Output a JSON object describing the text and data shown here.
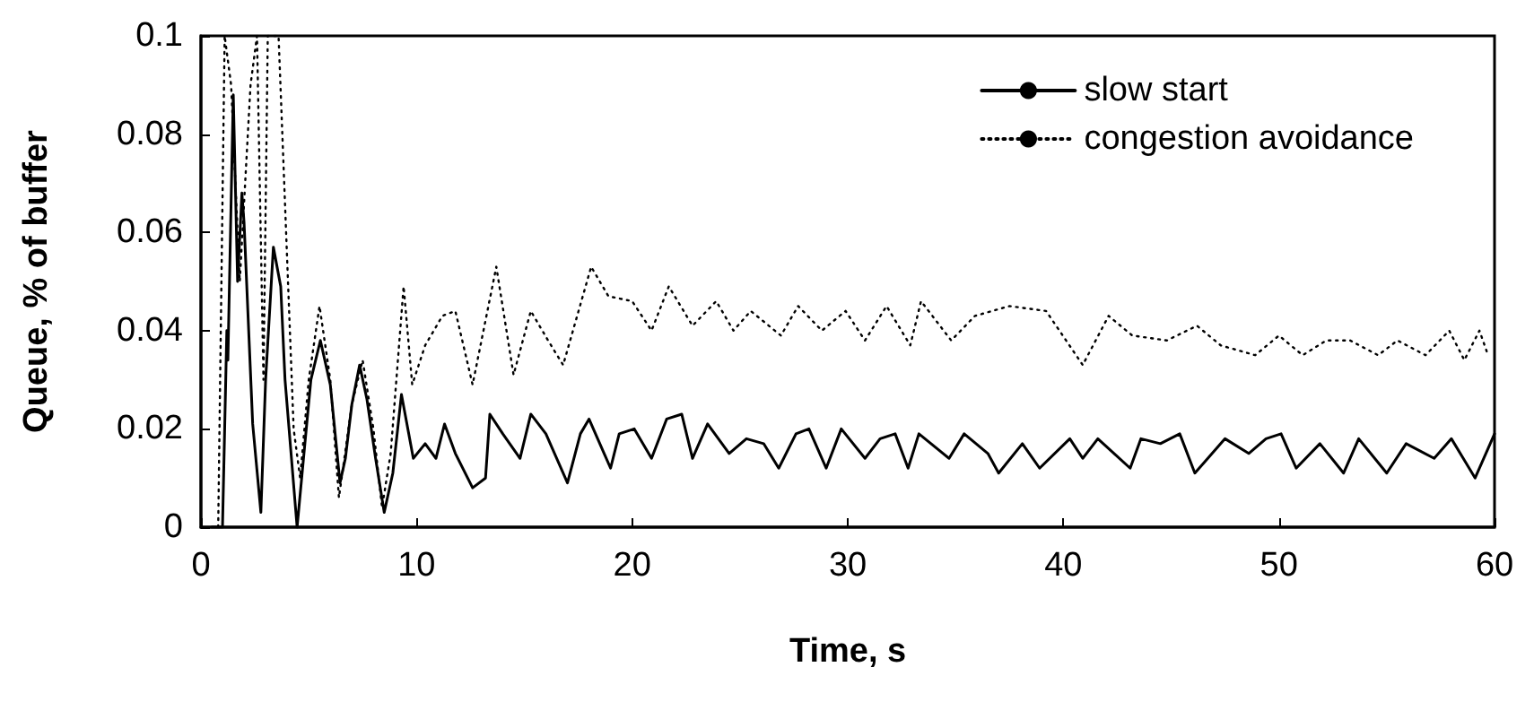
{
  "chart_data": {
    "type": "line",
    "xlabel": "Time, s",
    "ylabel": "Queue, % of buffer",
    "xlim": [
      0,
      60
    ],
    "xticks": [
      0,
      10,
      20,
      30,
      40,
      50,
      60
    ],
    "ylim": [
      0,
      0.1
    ],
    "yticks": [
      0,
      0.02,
      0.04,
      0.06,
      0.08,
      0.1
    ],
    "grid": false,
    "legend": "top right",
    "marker": "none",
    "series": [
      {
        "name": "slow start",
        "color": "#000000",
        "line_style": "solid",
        "x": [
          0.5,
          1.0,
          1.2,
          1.25,
          1.5,
          1.7,
          1.9,
          2.0,
          2.4,
          2.78,
          3.0,
          3.36,
          3.7,
          3.9,
          4.46,
          4.8,
          5.1,
          5.54,
          6.0,
          6.45,
          6.7,
          7.0,
          7.36,
          7.7,
          8.1,
          8.5,
          8.9,
          9.3,
          9.85,
          10.4,
          10.9,
          11.3,
          11.8,
          12.6,
          13.2,
          13.4,
          14.0,
          14.8,
          15.3,
          16.0,
          17.0,
          17.6,
          18.0,
          19.0,
          19.4,
          20.1,
          20.9,
          21.6,
          22.3,
          22.8,
          23.5,
          24.5,
          25.3,
          26.1,
          26.8,
          27.6,
          28.2,
          29.0,
          29.7,
          30.8,
          31.5,
          32.2,
          32.8,
          33.3,
          34.7,
          35.4,
          36.5,
          37.0,
          38.1,
          38.9,
          40.3,
          40.9,
          41.6,
          43.1,
          43.6,
          44.5,
          45.4,
          46.1,
          47.5,
          48.6,
          49.4,
          50.1,
          50.8,
          51.9,
          53.0,
          53.7,
          55.0,
          55.9,
          57.2,
          58.0,
          59.1,
          59.7,
          60
        ],
        "values": [
          0,
          0,
          0.04,
          0.034,
          0.088,
          0.05,
          0.068,
          0.062,
          0.021,
          0.003,
          0.03,
          0.057,
          0.049,
          0.03,
          0,
          0.016,
          0.03,
          0.038,
          0.029,
          0.009,
          0.014,
          0.025,
          0.033,
          0.026,
          0.014,
          0.003,
          0.011,
          0.027,
          0.014,
          0.017,
          0.014,
          0.021,
          0.015,
          0.008,
          0.01,
          0.023,
          0.019,
          0.014,
          0.023,
          0.019,
          0.009,
          0.019,
          0.022,
          0.012,
          0.019,
          0.02,
          0.014,
          0.022,
          0.023,
          0.014,
          0.021,
          0.015,
          0.018,
          0.017,
          0.012,
          0.019,
          0.02,
          0.012,
          0.02,
          0.014,
          0.018,
          0.019,
          0.012,
          0.019,
          0.014,
          0.019,
          0.015,
          0.011,
          0.017,
          0.012,
          0.018,
          0.014,
          0.018,
          0.012,
          0.018,
          0.017,
          0.019,
          0.011,
          0.018,
          0.015,
          0.018,
          0.019,
          0.012,
          0.017,
          0.011,
          0.018,
          0.011,
          0.017,
          0.014,
          0.018,
          0.01,
          0.016,
          0.019
        ]
      },
      {
        "name": "congestion avoidance",
        "color": "#000000",
        "line_style": "dotted",
        "x": [
          0.8,
          1.1,
          1.4,
          1.8,
          2.3,
          2.6,
          2.9,
          3.1,
          3.6,
          4.3,
          4.6,
          5.0,
          5.5,
          6.0,
          6.4,
          7.0,
          7.5,
          8.0,
          8.4,
          8.8,
          9.4,
          9.8,
          10.4,
          11.2,
          11.8,
          12.6,
          13.7,
          14.5,
          15.3,
          16.1,
          16.8,
          18.1,
          18.9,
          20.0,
          20.9,
          21.7,
          22.8,
          23.9,
          24.7,
          25.5,
          26.9,
          27.7,
          28.8,
          29.9,
          30.8,
          31.8,
          32.9,
          33.4,
          34.8,
          35.9,
          37.5,
          39.2,
          40.9,
          42.1,
          43.2,
          44.8,
          46.2,
          47.3,
          48.9,
          50.0,
          51.1,
          52.2,
          53.3,
          54.6,
          55.5,
          56.8,
          57.9,
          58.6,
          59.3,
          59.7
        ],
        "values": [
          0,
          0.1,
          0.09,
          0.05,
          0.09,
          0.1,
          0.03,
          0.1,
          0.1,
          0.02,
          0.01,
          0.03,
          0.045,
          0.03,
          0.006,
          0.025,
          0.034,
          0.02,
          0.004,
          0.015,
          0.049,
          0.029,
          0.037,
          0.043,
          0.044,
          0.029,
          0.053,
          0.031,
          0.044,
          0.038,
          0.033,
          0.053,
          0.047,
          0.046,
          0.04,
          0.049,
          0.041,
          0.046,
          0.04,
          0.044,
          0.039,
          0.045,
          0.04,
          0.044,
          0.038,
          0.045,
          0.037,
          0.046,
          0.038,
          0.043,
          0.045,
          0.044,
          0.033,
          0.043,
          0.039,
          0.038,
          0.041,
          0.037,
          0.035,
          0.039,
          0.035,
          0.038,
          0.038,
          0.035,
          0.038,
          0.035,
          0.04,
          0.034,
          0.04,
          0.035
        ]
      }
    ]
  }
}
